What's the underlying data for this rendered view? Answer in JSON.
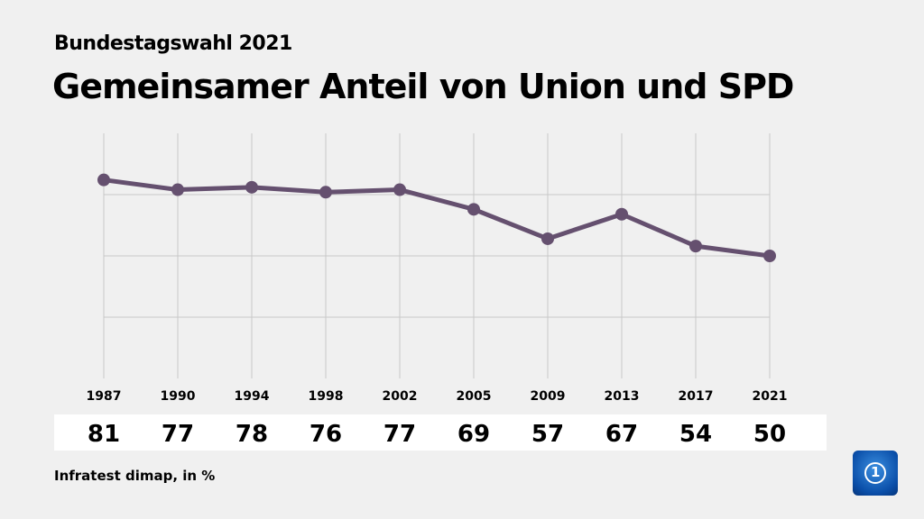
{
  "header": {
    "supertitle": "Bundestagswahl 2021",
    "title": "Gemeinsamer Anteil von Union und SPD"
  },
  "footer": {
    "source": "Infratest dimap, in %"
  },
  "logo": {
    "name": "tagesschau-logo",
    "text": "1"
  },
  "chart_data": {
    "type": "line",
    "categories": [
      "1987",
      "1990",
      "1994",
      "1998",
      "2002",
      "2005",
      "2009",
      "2013",
      "2017",
      "2021"
    ],
    "values": [
      81,
      77,
      78,
      76,
      77,
      69,
      57,
      67,
      54,
      50
    ],
    "ylim": [
      0,
      100
    ],
    "gridlines_y": [
      25,
      50,
      75
    ],
    "grid": true,
    "line_color": "#65506f",
    "unit": "%"
  }
}
